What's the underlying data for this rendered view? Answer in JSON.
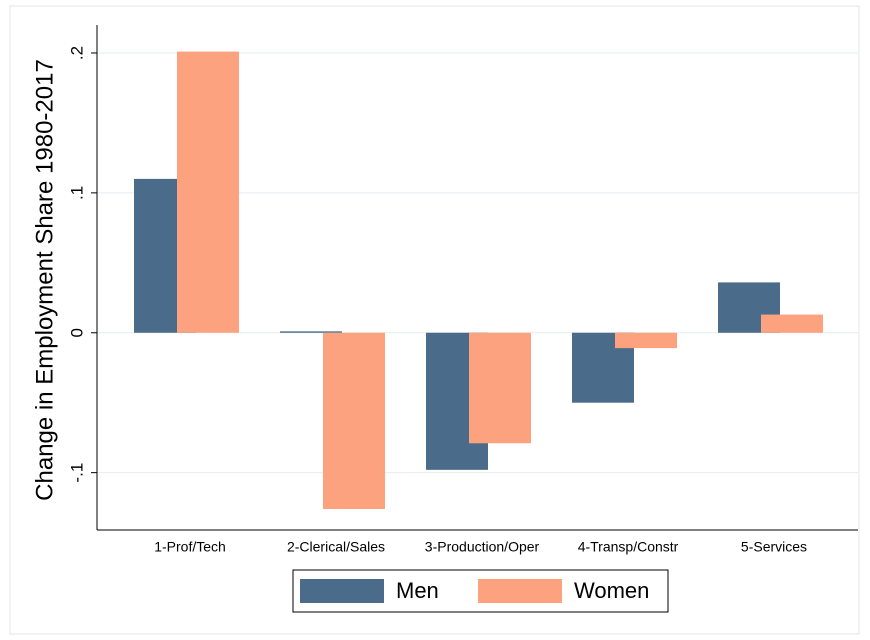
{
  "chart_data": {
    "type": "bar",
    "y_label": "Change in Employment Share 1980-2017",
    "categories": [
      "1-Prof/Tech",
      "2-Clerical/Sales",
      "3-Production/Oper",
      "4-Transp/Constr",
      "5-Services"
    ],
    "series": [
      {
        "name": "Men",
        "color": "#4a6b8a",
        "values": [
          0.11,
          0.001,
          -0.098,
          -0.05,
          0.036
        ]
      },
      {
        "name": "Women",
        "color": "#fda27f",
        "values": [
          0.201,
          -0.126,
          -0.079,
          -0.011,
          0.013
        ]
      }
    ],
    "ylim": [
      -0.141,
      0.22
    ],
    "yticks": [
      {
        "value": -0.1,
        "label": "-.1"
      },
      0,
      {
        "value": 0.1,
        "label": ".1"
      },
      {
        "value": 0.2,
        "label": ".2"
      }
    ],
    "grid": true
  }
}
